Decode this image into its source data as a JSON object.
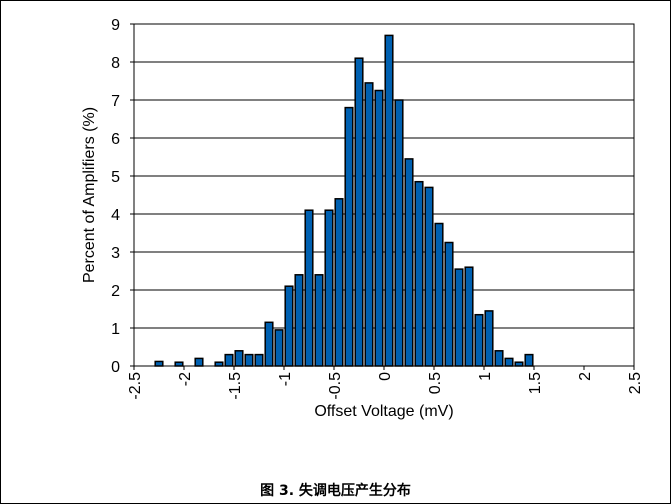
{
  "caption": "图 3. 失调电压产生分布",
  "chart_data": {
    "type": "bar",
    "title": "",
    "xlabel": "Offset Voltage (mV)",
    "ylabel": "Percent of Amplifiers (%)",
    "xlim": [
      -2.5,
      2.5
    ],
    "ylim": [
      0,
      9
    ],
    "bin_width": 0.1,
    "x_ticks": [
      -2.5,
      -2,
      -1.5,
      -1,
      -0.5,
      0,
      0.5,
      1,
      1.5,
      2,
      2.5
    ],
    "x_tick_labels": [
      "-2.5",
      "-2",
      "-1.5",
      "-1",
      "-0.5",
      "0",
      "0.5",
      "1",
      "1.5",
      "2",
      "2.5"
    ],
    "y_ticks": [
      0,
      1,
      2,
      3,
      4,
      5,
      6,
      7,
      8,
      9
    ],
    "y_tick_labels": [
      "0",
      "1",
      "2",
      "3",
      "4",
      "5",
      "6",
      "7",
      "8",
      "9"
    ],
    "grid": "horizontal",
    "bar_color": "#0060b0",
    "bars": [
      {
        "x": -2.25,
        "y": 0.12
      },
      {
        "x": -2.05,
        "y": 0.1
      },
      {
        "x": -1.85,
        "y": 0.2
      },
      {
        "x": -1.65,
        "y": 0.1
      },
      {
        "x": -1.55,
        "y": 0.3
      },
      {
        "x": -1.45,
        "y": 0.4
      },
      {
        "x": -1.35,
        "y": 0.3
      },
      {
        "x": -1.25,
        "y": 0.3
      },
      {
        "x": -1.15,
        "y": 1.15
      },
      {
        "x": -1.05,
        "y": 0.95
      },
      {
        "x": -0.95,
        "y": 2.1
      },
      {
        "x": -0.85,
        "y": 2.4
      },
      {
        "x": -0.75,
        "y": 4.1
      },
      {
        "x": -0.65,
        "y": 2.4
      },
      {
        "x": -0.55,
        "y": 4.1
      },
      {
        "x": -0.45,
        "y": 4.4
      },
      {
        "x": -0.35,
        "y": 6.8
      },
      {
        "x": -0.25,
        "y": 8.1
      },
      {
        "x": -0.15,
        "y": 7.45
      },
      {
        "x": -0.05,
        "y": 7.25
      },
      {
        "x": 0.05,
        "y": 8.7
      },
      {
        "x": 0.15,
        "y": 7.0
      },
      {
        "x": 0.25,
        "y": 5.45
      },
      {
        "x": 0.35,
        "y": 4.85
      },
      {
        "x": 0.45,
        "y": 4.7
      },
      {
        "x": 0.55,
        "y": 3.75
      },
      {
        "x": 0.65,
        "y": 3.25
      },
      {
        "x": 0.75,
        "y": 2.55
      },
      {
        "x": 0.85,
        "y": 2.6
      },
      {
        "x": 0.95,
        "y": 1.35
      },
      {
        "x": 1.05,
        "y": 1.45
      },
      {
        "x": 1.15,
        "y": 0.4
      },
      {
        "x": 1.25,
        "y": 0.2
      },
      {
        "x": 1.35,
        "y": 0.1
      },
      {
        "x": 1.45,
        "y": 0.3
      }
    ]
  }
}
